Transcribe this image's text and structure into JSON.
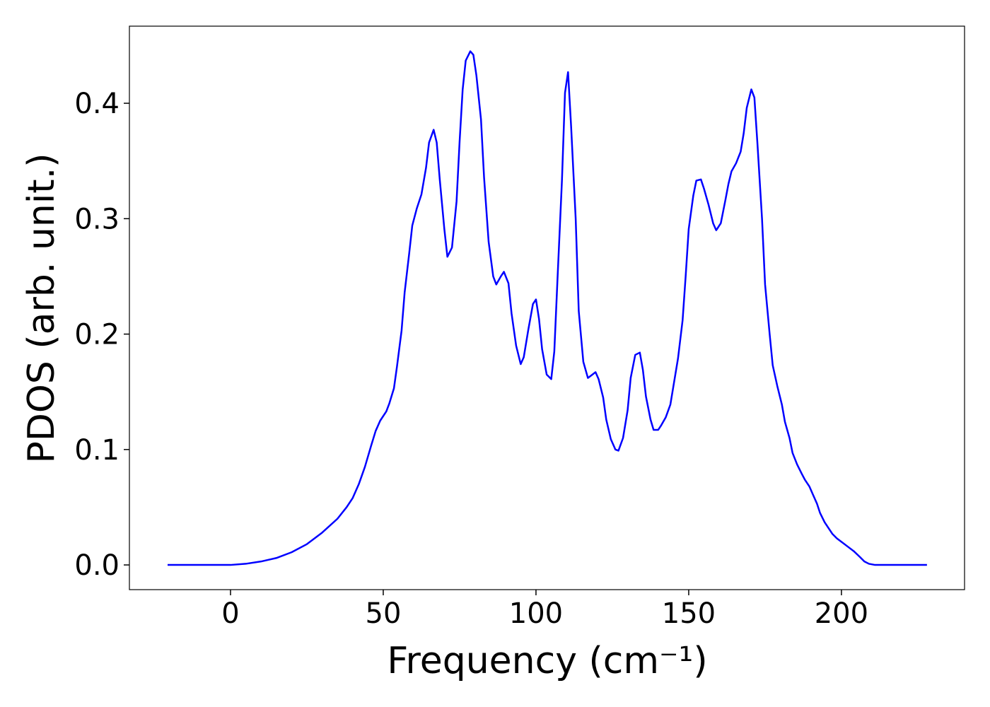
{
  "chart_data": {
    "type": "line",
    "xlabel": "Frequency (cm⁻¹)",
    "ylabel": "PDOS (arb. unit.)",
    "color": "#0000ff",
    "xlim": [
      -33.1,
      240.3
    ],
    "ylim": [
      -0.0214,
      0.4668
    ],
    "xticks": [
      0,
      50,
      100,
      150,
      200
    ],
    "yticks": [
      {
        "value": 0,
        "label": "0.0"
      },
      0.1,
      0.2,
      0.3,
      0.4
    ],
    "x": [
      -20.6,
      -10,
      0,
      5,
      10,
      15,
      20,
      25,
      30,
      35,
      38,
      40,
      42,
      44,
      46,
      47.5,
      49,
      51,
      52,
      53.5,
      54.5,
      56,
      57,
      58.5,
      59.5,
      61,
      62.5,
      64,
      65,
      66.5,
      67.5,
      68.5,
      70,
      71,
      72.5,
      74,
      75,
      76,
      77,
      78.5,
      79.5,
      80.5,
      82,
      83,
      84.5,
      86,
      87,
      88.5,
      89.5,
      91,
      92,
      93.5,
      95,
      96,
      97.5,
      99,
      100,
      101,
      102,
      103.5,
      105,
      106,
      107,
      108.5,
      109.5,
      110.5,
      111.5,
      113,
      114,
      115.5,
      117,
      118,
      119.5,
      120.5,
      122,
      123,
      124.5,
      126,
      127,
      128.5,
      130,
      131,
      132.5,
      134,
      135,
      136,
      137.5,
      138.5,
      140,
      141,
      142.5,
      144,
      145,
      146.5,
      148,
      149,
      150,
      151.5,
      152.5,
      154,
      155,
      156.5,
      158,
      159,
      160.5,
      162,
      163,
      164,
      165.5,
      167,
      168,
      169,
      170.5,
      171.5,
      172.5,
      174,
      175,
      176.5,
      177.5,
      179,
      180.5,
      181.5,
      183,
      184,
      185.5,
      187,
      188,
      189.5,
      190.5,
      192,
      193,
      194.5,
      196,
      197,
      198.5,
      200,
      202,
      204,
      206,
      207.5,
      209,
      211,
      228
    ],
    "values": [
      0,
      0,
      0,
      0.001,
      0.003,
      0.006,
      0.011,
      0.018,
      0.028,
      0.04,
      0.05,
      0.058,
      0.07,
      0.085,
      0.103,
      0.116,
      0.125,
      0.133,
      0.14,
      0.153,
      0.172,
      0.203,
      0.236,
      0.27,
      0.294,
      0.309,
      0.321,
      0.344,
      0.366,
      0.377,
      0.366,
      0.334,
      0.291,
      0.267,
      0.275,
      0.315,
      0.367,
      0.412,
      0.437,
      0.445,
      0.442,
      0.424,
      0.386,
      0.336,
      0.28,
      0.25,
      0.243,
      0.25,
      0.254,
      0.244,
      0.218,
      0.19,
      0.174,
      0.18,
      0.204,
      0.226,
      0.23,
      0.213,
      0.187,
      0.165,
      0.161,
      0.185,
      0.245,
      0.333,
      0.409,
      0.427,
      0.38,
      0.3,
      0.22,
      0.176,
      0.162,
      0.164,
      0.167,
      0.161,
      0.145,
      0.126,
      0.109,
      0.1,
      0.099,
      0.11,
      0.134,
      0.162,
      0.182,
      0.184,
      0.169,
      0.146,
      0.126,
      0.117,
      0.117,
      0.121,
      0.128,
      0.139,
      0.155,
      0.179,
      0.212,
      0.25,
      0.291,
      0.32,
      0.333,
      0.334,
      0.326,
      0.312,
      0.296,
      0.29,
      0.296,
      0.316,
      0.33,
      0.341,
      0.348,
      0.358,
      0.374,
      0.396,
      0.412,
      0.405,
      0.365,
      0.3,
      0.243,
      0.2,
      0.173,
      0.155,
      0.139,
      0.124,
      0.11,
      0.097,
      0.087,
      0.079,
      0.074,
      0.068,
      0.062,
      0.053,
      0.045,
      0.037,
      0.031,
      0.027,
      0.023,
      0.02,
      0.016,
      0.012,
      0.007,
      0.003,
      0.001,
      0,
      0
    ]
  }
}
